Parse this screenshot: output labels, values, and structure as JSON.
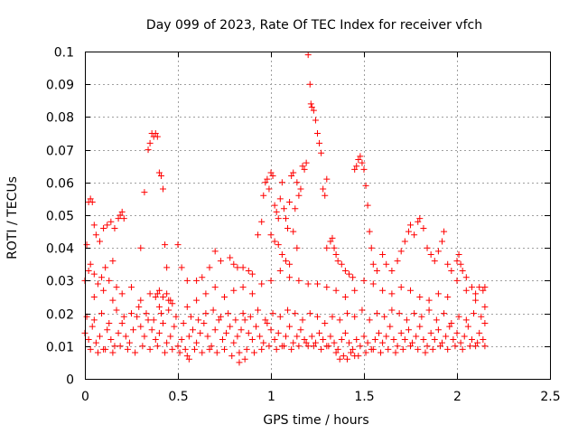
{
  "chart_data": {
    "type": "scatter",
    "title": "Day 099 of 2023, Rate Of TEC Index for receiver vfch",
    "xlabel": "GPS time / hours",
    "ylabel": "ROTI / TECUs",
    "xlim": [
      0,
      2.5
    ],
    "ylim": [
      0,
      0.1
    ],
    "xticks": [
      0,
      0.5,
      1,
      1.5,
      2,
      2.5
    ],
    "xtick_labels": [
      "0",
      "0.5",
      "1",
      "1.5",
      "2",
      "2.5"
    ],
    "yticks": [
      0,
      0.01,
      0.02,
      0.03,
      0.04,
      0.05,
      0.06,
      0.07,
      0.08,
      0.09,
      0.1
    ],
    "ytick_labels": [
      "0",
      "0.01",
      "0.02",
      "0.03",
      "0.04",
      "0.05",
      "0.06",
      "0.07",
      "0.08",
      "0.09",
      "0.1"
    ],
    "grid": true,
    "marker": "+",
    "color": "#ff0000",
    "points": [
      [
        0.01,
        0.041
      ],
      [
        0.02,
        0.054
      ],
      [
        0.03,
        0.055
      ],
      [
        0.04,
        0.054
      ],
      [
        0.05,
        0.047
      ],
      [
        0.06,
        0.044
      ],
      [
        0.08,
        0.042
      ],
      [
        0.1,
        0.046
      ],
      [
        0.12,
        0.047
      ],
      [
        0.14,
        0.048
      ],
      [
        0.16,
        0.046
      ],
      [
        0.18,
        0.049
      ],
      [
        0.19,
        0.05
      ],
      [
        0.2,
        0.051
      ],
      [
        0.21,
        0.049
      ],
      [
        0.0,
        0.03
      ],
      [
        0.02,
        0.033
      ],
      [
        0.03,
        0.035
      ],
      [
        0.05,
        0.032
      ],
      [
        0.07,
        0.029
      ],
      [
        0.09,
        0.031
      ],
      [
        0.11,
        0.034
      ],
      [
        0.13,
        0.03
      ],
      [
        0.15,
        0.036
      ],
      [
        0.17,
        0.028
      ],
      [
        0.3,
        0.04
      ],
      [
        0.32,
        0.057
      ],
      [
        0.34,
        0.07
      ],
      [
        0.35,
        0.072
      ],
      [
        0.36,
        0.075
      ],
      [
        0.37,
        0.074
      ],
      [
        0.38,
        0.075
      ],
      [
        0.39,
        0.074
      ],
      [
        0.4,
        0.063
      ],
      [
        0.41,
        0.062
      ],
      [
        0.42,
        0.058
      ],
      [
        0.43,
        0.041
      ],
      [
        0.44,
        0.034
      ],
      [
        0.38,
        0.025
      ],
      [
        0.39,
        0.026
      ],
      [
        0.4,
        0.027
      ],
      [
        0.42,
        0.025
      ],
      [
        0.44,
        0.026
      ],
      [
        0.46,
        0.024
      ],
      [
        0.47,
        0.023
      ],
      [
        0.5,
        0.041
      ],
      [
        0.52,
        0.034
      ],
      [
        0.55,
        0.03
      ],
      [
        0.6,
        0.03
      ],
      [
        0.63,
        0.031
      ],
      [
        0.67,
        0.034
      ],
      [
        0.7,
        0.039
      ],
      [
        0.73,
        0.036
      ],
      [
        0.78,
        0.037
      ],
      [
        0.8,
        0.035
      ],
      [
        0.82,
        0.034
      ],
      [
        0.85,
        0.034
      ],
      [
        0.88,
        0.033
      ],
      [
        0.9,
        0.032
      ],
      [
        0.93,
        0.044
      ],
      [
        0.95,
        0.048
      ],
      [
        0.96,
        0.056
      ],
      [
        0.97,
        0.06
      ],
      [
        0.98,
        0.061
      ],
      [
        0.99,
        0.058
      ],
      [
        1.0,
        0.063
      ],
      [
        1.01,
        0.062
      ],
      [
        1.02,
        0.053
      ],
      [
        1.03,
        0.051
      ],
      [
        1.04,
        0.049
      ],
      [
        1.05,
        0.055
      ],
      [
        1.06,
        0.06
      ],
      [
        1.07,
        0.052
      ],
      [
        1.08,
        0.049
      ],
      [
        1.09,
        0.046
      ],
      [
        1.1,
        0.054
      ],
      [
        1.11,
        0.062
      ],
      [
        1.12,
        0.063
      ],
      [
        1.13,
        0.052
      ],
      [
        1.14,
        0.06
      ],
      [
        1.15,
        0.056
      ],
      [
        1.16,
        0.058
      ],
      [
        1.17,
        0.065
      ],
      [
        1.18,
        0.064
      ],
      [
        1.19,
        0.066
      ],
      [
        1.2,
        0.099
      ],
      [
        1.21,
        0.09
      ],
      [
        1.215,
        0.084
      ],
      [
        1.22,
        0.083
      ],
      [
        1.23,
        0.082
      ],
      [
        1.24,
        0.079
      ],
      [
        1.25,
        0.075
      ],
      [
        1.26,
        0.072
      ],
      [
        1.27,
        0.069
      ],
      [
        1.28,
        0.058
      ],
      [
        1.29,
        0.056
      ],
      [
        1.3,
        0.061
      ],
      [
        1.0,
        0.044
      ],
      [
        1.02,
        0.042
      ],
      [
        1.04,
        0.041
      ],
      [
        1.06,
        0.038
      ],
      [
        1.08,
        0.036
      ],
      [
        1.1,
        0.035
      ],
      [
        1.12,
        0.045
      ],
      [
        1.14,
        0.04
      ],
      [
        1.3,
        0.04
      ],
      [
        1.32,
        0.042
      ],
      [
        1.33,
        0.043
      ],
      [
        1.34,
        0.04
      ],
      [
        1.35,
        0.038
      ],
      [
        1.36,
        0.036
      ],
      [
        1.38,
        0.035
      ],
      [
        1.4,
        0.033
      ],
      [
        1.42,
        0.032
      ],
      [
        1.44,
        0.031
      ],
      [
        1.45,
        0.064
      ],
      [
        1.46,
        0.065
      ],
      [
        1.47,
        0.067
      ],
      [
        1.48,
        0.068
      ],
      [
        1.49,
        0.066
      ],
      [
        1.5,
        0.064
      ],
      [
        1.51,
        0.059
      ],
      [
        1.52,
        0.053
      ],
      [
        1.53,
        0.045
      ],
      [
        1.54,
        0.04
      ],
      [
        1.55,
        0.035
      ],
      [
        1.57,
        0.033
      ],
      [
        1.6,
        0.038
      ],
      [
        1.62,
        0.035
      ],
      [
        1.65,
        0.033
      ],
      [
        1.68,
        0.036
      ],
      [
        1.7,
        0.039
      ],
      [
        1.72,
        0.042
      ],
      [
        1.74,
        0.045
      ],
      [
        1.75,
        0.047
      ],
      [
        1.77,
        0.044
      ],
      [
        1.79,
        0.048
      ],
      [
        1.8,
        0.049
      ],
      [
        1.82,
        0.046
      ],
      [
        1.84,
        0.04
      ],
      [
        1.86,
        0.038
      ],
      [
        1.88,
        0.036
      ],
      [
        1.9,
        0.039
      ],
      [
        1.92,
        0.042
      ],
      [
        1.93,
        0.045
      ],
      [
        1.95,
        0.035
      ],
      [
        1.97,
        0.033
      ],
      [
        2.0,
        0.036
      ],
      [
        2.01,
        0.038
      ],
      [
        2.02,
        0.035
      ],
      [
        2.03,
        0.033
      ],
      [
        2.05,
        0.031
      ],
      [
        2.08,
        0.028
      ],
      [
        2.1,
        0.026
      ],
      [
        2.12,
        0.028
      ],
      [
        2.14,
        0.027
      ],
      [
        2.15,
        0.028
      ],
      [
        0.05,
        0.025
      ],
      [
        0.1,
        0.027
      ],
      [
        0.15,
        0.024
      ],
      [
        0.2,
        0.026
      ],
      [
        0.25,
        0.028
      ],
      [
        0.3,
        0.024
      ],
      [
        0.35,
        0.026
      ],
      [
        0.4,
        0.022
      ],
      [
        0.45,
        0.024
      ],
      [
        0.55,
        0.022
      ],
      [
        0.6,
        0.024
      ],
      [
        0.65,
        0.026
      ],
      [
        0.7,
        0.028
      ],
      [
        0.75,
        0.025
      ],
      [
        0.8,
        0.027
      ],
      [
        0.85,
        0.028
      ],
      [
        0.9,
        0.026
      ],
      [
        0.95,
        0.029
      ],
      [
        1.0,
        0.03
      ],
      [
        1.05,
        0.033
      ],
      [
        1.1,
        0.031
      ],
      [
        1.15,
        0.03
      ],
      [
        1.2,
        0.029
      ],
      [
        1.25,
        0.029
      ],
      [
        1.3,
        0.028
      ],
      [
        1.35,
        0.027
      ],
      [
        1.4,
        0.025
      ],
      [
        1.45,
        0.027
      ],
      [
        1.5,
        0.03
      ],
      [
        1.55,
        0.029
      ],
      [
        1.6,
        0.027
      ],
      [
        1.65,
        0.026
      ],
      [
        1.7,
        0.028
      ],
      [
        1.75,
        0.027
      ],
      [
        1.8,
        0.025
      ],
      [
        1.85,
        0.024
      ],
      [
        1.9,
        0.026
      ],
      [
        1.95,
        0.025
      ],
      [
        2.0,
        0.03
      ],
      [
        2.05,
        0.027
      ],
      [
        2.1,
        0.024
      ],
      [
        2.15,
        0.022
      ],
      [
        0.0,
        0.014
      ],
      [
        0.02,
        0.012
      ],
      [
        0.04,
        0.016
      ],
      [
        0.06,
        0.011
      ],
      [
        0.08,
        0.013
      ],
      [
        0.1,
        0.009
      ],
      [
        0.12,
        0.015
      ],
      [
        0.14,
        0.012
      ],
      [
        0.16,
        0.01
      ],
      [
        0.18,
        0.014
      ],
      [
        0.2,
        0.017
      ],
      [
        0.22,
        0.013
      ],
      [
        0.24,
        0.011
      ],
      [
        0.26,
        0.015
      ],
      [
        0.28,
        0.019
      ],
      [
        0.3,
        0.016
      ],
      [
        0.32,
        0.013
      ],
      [
        0.34,
        0.018
      ],
      [
        0.36,
        0.015
      ],
      [
        0.38,
        0.012
      ],
      [
        0.4,
        0.014
      ],
      [
        0.42,
        0.017
      ],
      [
        0.44,
        0.011
      ],
      [
        0.46,
        0.013
      ],
      [
        0.48,
        0.016
      ],
      [
        0.5,
        0.01
      ],
      [
        0.52,
        0.012
      ],
      [
        0.54,
        0.009
      ],
      [
        0.56,
        0.013
      ],
      [
        0.58,
        0.015
      ],
      [
        0.6,
        0.011
      ],
      [
        0.62,
        0.014
      ],
      [
        0.64,
        0.017
      ],
      [
        0.66,
        0.013
      ],
      [
        0.68,
        0.01
      ],
      [
        0.7,
        0.015
      ],
      [
        0.72,
        0.018
      ],
      [
        0.74,
        0.012
      ],
      [
        0.76,
        0.014
      ],
      [
        0.78,
        0.016
      ],
      [
        0.8,
        0.011
      ],
      [
        0.82,
        0.013
      ],
      [
        0.84,
        0.015
      ],
      [
        0.86,
        0.018
      ],
      [
        0.88,
        0.014
      ],
      [
        0.9,
        0.012
      ],
      [
        0.92,
        0.016
      ],
      [
        0.94,
        0.013
      ],
      [
        0.96,
        0.011
      ],
      [
        0.98,
        0.017
      ],
      [
        1.0,
        0.015
      ],
      [
        1.02,
        0.012
      ],
      [
        1.04,
        0.014
      ],
      [
        1.06,
        0.01
      ],
      [
        1.08,
        0.013
      ],
      [
        1.1,
        0.016
      ],
      [
        1.12,
        0.011
      ],
      [
        1.14,
        0.013
      ],
      [
        1.16,
        0.015
      ],
      [
        1.18,
        0.012
      ],
      [
        1.2,
        0.01
      ],
      [
        1.22,
        0.013
      ],
      [
        1.24,
        0.011
      ],
      [
        1.26,
        0.014
      ],
      [
        1.28,
        0.012
      ],
      [
        1.3,
        0.01
      ],
      [
        1.32,
        0.013
      ],
      [
        1.34,
        0.011
      ],
      [
        1.36,
        0.009
      ],
      [
        1.38,
        0.012
      ],
      [
        1.4,
        0.014
      ],
      [
        1.42,
        0.011
      ],
      [
        1.44,
        0.009
      ],
      [
        1.46,
        0.012
      ],
      [
        1.48,
        0.01
      ],
      [
        1.5,
        0.013
      ],
      [
        1.52,
        0.011
      ],
      [
        1.54,
        0.009
      ],
      [
        1.56,
        0.012
      ],
      [
        1.58,
        0.014
      ],
      [
        1.6,
        0.011
      ],
      [
        1.62,
        0.013
      ],
      [
        1.64,
        0.016
      ],
      [
        1.66,
        0.012
      ],
      [
        1.68,
        0.01
      ],
      [
        1.7,
        0.014
      ],
      [
        1.72,
        0.012
      ],
      [
        1.74,
        0.015
      ],
      [
        1.76,
        0.011
      ],
      [
        1.78,
        0.013
      ],
      [
        1.8,
        0.016
      ],
      [
        1.82,
        0.012
      ],
      [
        1.84,
        0.01
      ],
      [
        1.86,
        0.014
      ],
      [
        1.88,
        0.012
      ],
      [
        1.9,
        0.015
      ],
      [
        1.92,
        0.011
      ],
      [
        1.94,
        0.013
      ],
      [
        1.96,
        0.016
      ],
      [
        1.98,
        0.012
      ],
      [
        2.0,
        0.014
      ],
      [
        2.02,
        0.011
      ],
      [
        2.04,
        0.013
      ],
      [
        2.06,
        0.016
      ],
      [
        2.08,
        0.012
      ],
      [
        2.1,
        0.01
      ],
      [
        2.12,
        0.014
      ],
      [
        2.14,
        0.012
      ],
      [
        2.15,
        0.017
      ],
      [
        0.01,
        0.019
      ],
      [
        0.05,
        0.018
      ],
      [
        0.09,
        0.02
      ],
      [
        0.13,
        0.017
      ],
      [
        0.17,
        0.021
      ],
      [
        0.21,
        0.019
      ],
      [
        0.25,
        0.02
      ],
      [
        0.29,
        0.022
      ],
      [
        0.33,
        0.02
      ],
      [
        0.37,
        0.018
      ],
      [
        0.41,
        0.02
      ],
      [
        0.45,
        0.021
      ],
      [
        0.49,
        0.019
      ],
      [
        0.53,
        0.017
      ],
      [
        0.57,
        0.019
      ],
      [
        0.61,
        0.018
      ],
      [
        0.65,
        0.02
      ],
      [
        0.69,
        0.021
      ],
      [
        0.73,
        0.019
      ],
      [
        0.77,
        0.02
      ],
      [
        0.81,
        0.018
      ],
      [
        0.85,
        0.02
      ],
      [
        0.89,
        0.019
      ],
      [
        0.93,
        0.021
      ],
      [
        0.97,
        0.018
      ],
      [
        1.01,
        0.02
      ],
      [
        1.05,
        0.019
      ],
      [
        1.09,
        0.021
      ],
      [
        1.13,
        0.02
      ],
      [
        1.17,
        0.018
      ],
      [
        1.21,
        0.02
      ],
      [
        1.25,
        0.019
      ],
      [
        1.29,
        0.017
      ],
      [
        1.33,
        0.019
      ],
      [
        1.37,
        0.018
      ],
      [
        1.41,
        0.02
      ],
      [
        1.45,
        0.019
      ],
      [
        1.49,
        0.021
      ],
      [
        1.53,
        0.018
      ],
      [
        1.57,
        0.02
      ],
      [
        1.61,
        0.019
      ],
      [
        1.65,
        0.021
      ],
      [
        1.69,
        0.02
      ],
      [
        1.73,
        0.018
      ],
      [
        1.77,
        0.02
      ],
      [
        1.81,
        0.019
      ],
      [
        1.85,
        0.021
      ],
      [
        1.89,
        0.018
      ],
      [
        1.93,
        0.02
      ],
      [
        1.97,
        0.017
      ],
      [
        2.01,
        0.019
      ],
      [
        2.05,
        0.018
      ],
      [
        2.09,
        0.02
      ],
      [
        2.13,
        0.019
      ],
      [
        0.03,
        0.009
      ],
      [
        0.07,
        0.008
      ],
      [
        0.11,
        0.009
      ],
      [
        0.15,
        0.008
      ],
      [
        0.19,
        0.01
      ],
      [
        0.23,
        0.009
      ],
      [
        0.27,
        0.008
      ],
      [
        0.31,
        0.01
      ],
      [
        0.35,
        0.009
      ],
      [
        0.39,
        0.01
      ],
      [
        0.43,
        0.008
      ],
      [
        0.47,
        0.009
      ],
      [
        0.51,
        0.008
      ],
      [
        0.55,
        0.007
      ],
      [
        0.59,
        0.009
      ],
      [
        0.63,
        0.008
      ],
      [
        0.67,
        0.009
      ],
      [
        0.71,
        0.008
      ],
      [
        0.75,
        0.009
      ],
      [
        0.79,
        0.007
      ],
      [
        0.83,
        0.008
      ],
      [
        0.87,
        0.009
      ],
      [
        0.91,
        0.008
      ],
      [
        0.95,
        0.009
      ],
      [
        0.99,
        0.01
      ],
      [
        1.03,
        0.009
      ],
      [
        1.07,
        0.01
      ],
      [
        1.11,
        0.009
      ],
      [
        1.15,
        0.01
      ],
      [
        1.19,
        0.011
      ],
      [
        1.23,
        0.01
      ],
      [
        1.27,
        0.009
      ],
      [
        1.31,
        0.01
      ],
      [
        1.35,
        0.008
      ],
      [
        1.39,
        0.007
      ],
      [
        1.43,
        0.008
      ],
      [
        1.47,
        0.007
      ],
      [
        1.51,
        0.008
      ],
      [
        1.55,
        0.009
      ],
      [
        1.59,
        0.008
      ],
      [
        1.63,
        0.009
      ],
      [
        1.67,
        0.008
      ],
      [
        1.71,
        0.009
      ],
      [
        1.75,
        0.01
      ],
      [
        1.79,
        0.009
      ],
      [
        1.83,
        0.008
      ],
      [
        1.87,
        0.009
      ],
      [
        1.91,
        0.01
      ],
      [
        1.95,
        0.009
      ],
      [
        1.99,
        0.01
      ],
      [
        2.03,
        0.009
      ],
      [
        2.07,
        0.01
      ],
      [
        2.11,
        0.011
      ],
      [
        2.15,
        0.01
      ],
      [
        0.56,
        0.006
      ],
      [
        0.83,
        0.005
      ],
      [
        0.86,
        0.006
      ],
      [
        1.37,
        0.006
      ],
      [
        1.41,
        0.006
      ],
      [
        1.45,
        0.007
      ]
    ]
  }
}
